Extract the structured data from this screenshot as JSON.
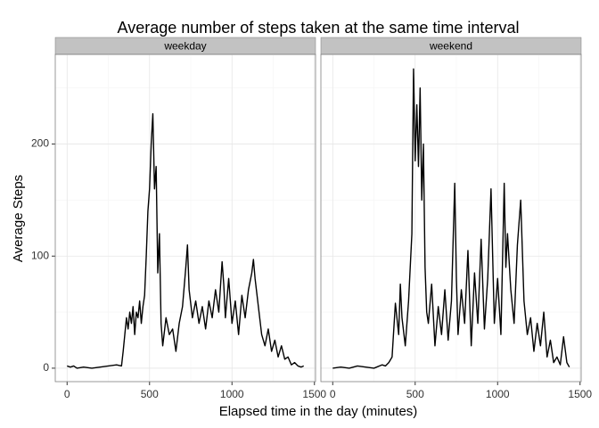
{
  "title": "Average number of steps taken at the same time interval",
  "x_label": "Elapsed time in the day (minutes)",
  "y_label": "Average Steps",
  "chart_data": [
    {
      "type": "line",
      "facet": "weekday",
      "color": "#000000",
      "grid": true,
      "xlim": [
        -71.75,
        1506.75
      ],
      "ylim": [
        -12,
        280
      ],
      "xticks": [
        0,
        500,
        1000,
        1500
      ],
      "yticks": [
        0,
        100,
        200
      ],
      "x_minor": [
        250,
        750,
        1250
      ],
      "y_minor": [
        50,
        150,
        250
      ],
      "x": [
        0,
        20,
        40,
        60,
        100,
        150,
        200,
        250,
        300,
        330,
        340,
        350,
        360,
        370,
        380,
        390,
        400,
        410,
        420,
        430,
        440,
        450,
        460,
        470,
        480,
        490,
        500,
        510,
        520,
        530,
        540,
        550,
        560,
        570,
        580,
        600,
        620,
        640,
        660,
        680,
        700,
        720,
        730,
        740,
        760,
        780,
        800,
        820,
        840,
        860,
        880,
        900,
        920,
        940,
        950,
        960,
        980,
        1000,
        1020,
        1040,
        1060,
        1080,
        1100,
        1120,
        1130,
        1140,
        1160,
        1180,
        1200,
        1220,
        1240,
        1260,
        1280,
        1300,
        1320,
        1340,
        1360,
        1380,
        1400,
        1420,
        1435
      ],
      "values": [
        2,
        1,
        2,
        0,
        1,
        0,
        1,
        2,
        3,
        2,
        15,
        30,
        45,
        35,
        50,
        40,
        55,
        30,
        50,
        45,
        60,
        40,
        55,
        65,
        100,
        140,
        160,
        200,
        227,
        160,
        180,
        85,
        120,
        40,
        20,
        45,
        30,
        35,
        15,
        40,
        55,
        90,
        110,
        70,
        45,
        60,
        40,
        55,
        35,
        60,
        45,
        70,
        50,
        95,
        75,
        45,
        80,
        40,
        60,
        30,
        65,
        45,
        70,
        85,
        97,
        80,
        55,
        30,
        20,
        35,
        15,
        25,
        10,
        20,
        8,
        10,
        3,
        5,
        2,
        1,
        2
      ]
    },
    {
      "type": "line",
      "facet": "weekend",
      "color": "#000000",
      "grid": true,
      "xlim": [
        -71.75,
        1506.75
      ],
      "ylim": [
        -12,
        280
      ],
      "xticks": [
        0,
        500,
        1000,
        1500
      ],
      "yticks": [
        0,
        100,
        200
      ],
      "x_minor": [
        250,
        750,
        1250
      ],
      "y_minor": [
        50,
        150,
        250
      ],
      "x": [
        0,
        50,
        100,
        150,
        200,
        250,
        300,
        320,
        340,
        360,
        380,
        400,
        410,
        420,
        440,
        460,
        480,
        490,
        500,
        510,
        520,
        530,
        540,
        550,
        560,
        570,
        580,
        600,
        620,
        640,
        660,
        680,
        700,
        720,
        740,
        750,
        760,
        780,
        800,
        820,
        840,
        860,
        880,
        900,
        920,
        940,
        960,
        970,
        980,
        1000,
        1020,
        1040,
        1050,
        1060,
        1080,
        1100,
        1120,
        1140,
        1160,
        1180,
        1200,
        1220,
        1240,
        1260,
        1280,
        1300,
        1320,
        1340,
        1360,
        1380,
        1400,
        1420,
        1435
      ],
      "values": [
        0,
        1,
        0,
        2,
        1,
        0,
        3,
        2,
        5,
        10,
        58,
        30,
        75,
        45,
        20,
        60,
        120,
        267,
        185,
        235,
        180,
        250,
        150,
        200,
        90,
        50,
        40,
        75,
        20,
        55,
        30,
        70,
        25,
        60,
        165,
        80,
        30,
        70,
        40,
        105,
        20,
        85,
        40,
        115,
        35,
        80,
        160,
        100,
        40,
        80,
        30,
        165,
        90,
        120,
        70,
        40,
        110,
        150,
        60,
        30,
        45,
        15,
        40,
        20,
        50,
        10,
        25,
        5,
        10,
        3,
        28,
        5,
        1
      ]
    }
  ]
}
